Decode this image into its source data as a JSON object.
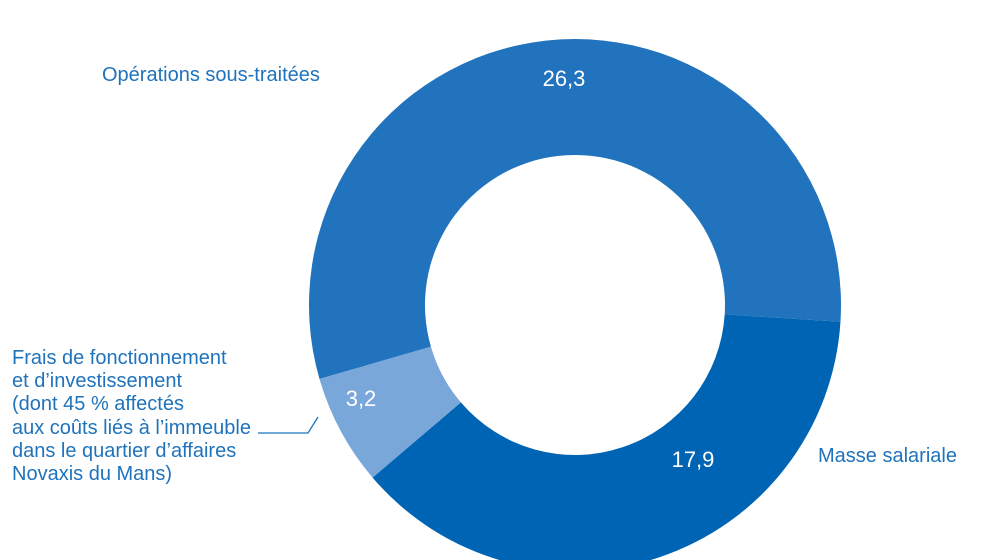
{
  "colors": {
    "text": "#1f73bc",
    "value_text": "#ffffff",
    "background": "#ffffff"
  },
  "chart_data": {
    "type": "pie",
    "variant": "donut",
    "title": "",
    "unit": "",
    "slices": [
      {
        "label": "Opérations sous-traitées",
        "value": 26.3,
        "display": "26,3",
        "color": "#2173bd"
      },
      {
        "label": "Masse salariale",
        "value": 17.9,
        "display": "17,9",
        "color": "#0064b4"
      },
      {
        "label_lines": [
          "Frais de fonctionnement",
          "et d’investissement",
          "(dont 45 % affectés",
          "aux coûts liés à l’immeuble",
          "dans le quartier d’affaires",
          "Novaxis du Mans)"
        ],
        "value": 3.2,
        "display": "3,2",
        "color": "#7aa7da"
      }
    ]
  }
}
